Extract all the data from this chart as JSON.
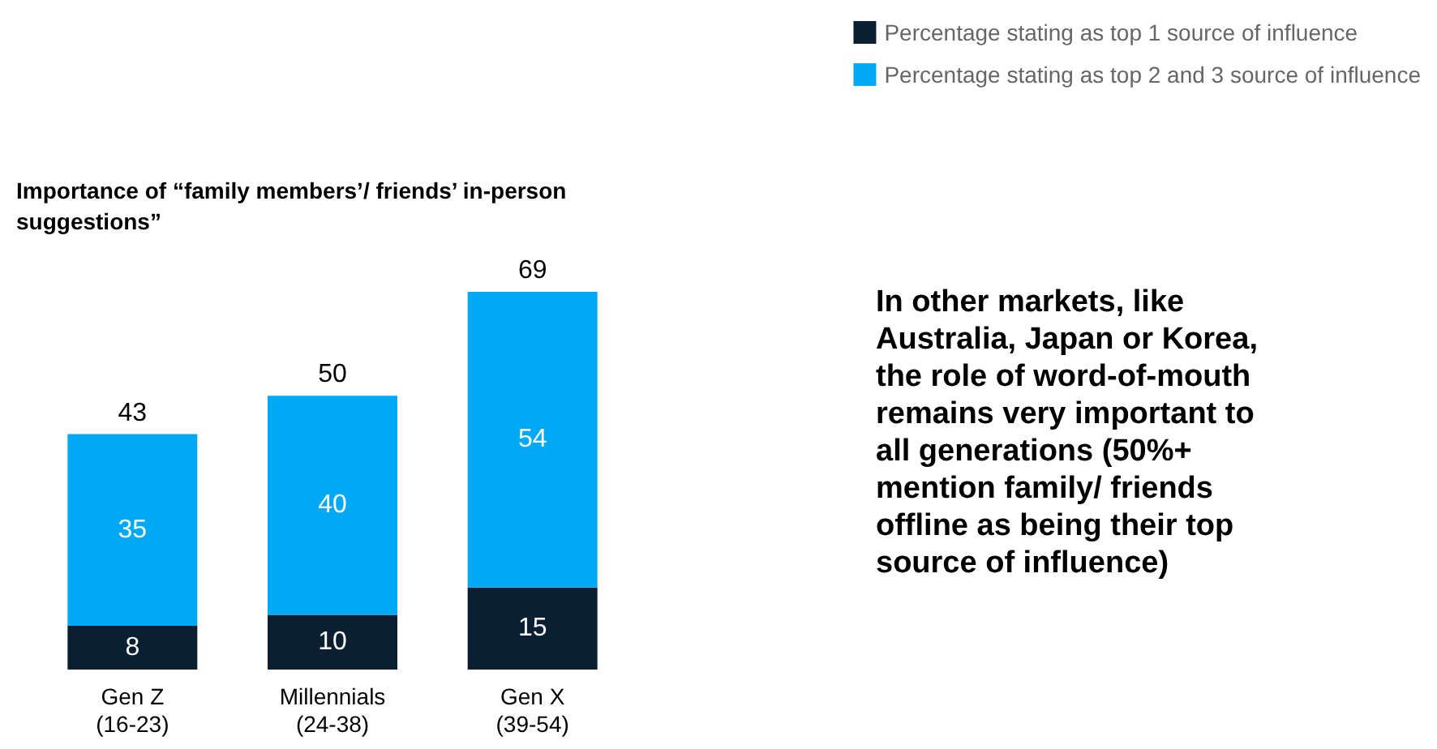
{
  "chart_data": {
    "type": "bar",
    "stacked": true,
    "title": "Importance of “family members’/ friends’ in-person suggestions”",
    "categories": [
      "Gen Z\n(16-23)",
      "Millennials\n(24-38)",
      "Gen X\n(39-54)"
    ],
    "series": [
      {
        "name": "Percentage stating as top 1 source of influence",
        "color": "#0b1f33",
        "values": [
          8,
          10,
          15
        ]
      },
      {
        "name": "Percentage stating as top 2 and 3 source of influence",
        "color": "#00a9f4",
        "values": [
          35,
          40,
          54
        ]
      }
    ],
    "data_labels": true,
    "totals": [
      "43",
      "50",
      "69"
    ],
    "legend": "top right",
    "annotations": [
      "In other markets, like Australia, Japan or Korea, the role of word-of-mouth remains very important to all generations (50%+ mention family/ friends offline as being their top source of influence)"
    ]
  }
}
